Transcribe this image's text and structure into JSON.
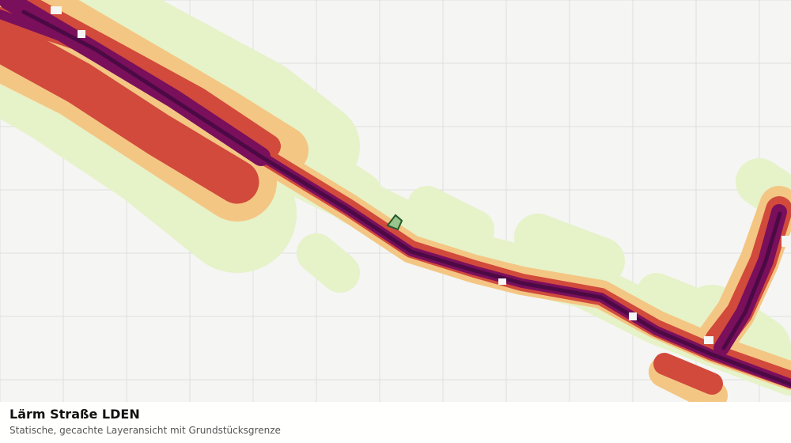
{
  "map": {
    "layer_title": "Lärm Straße LDEN",
    "layer_subtitle": "Statische, gecachte Layeransicht mit Grundstücksgrenze",
    "noise_class_colors": [
      "#e6f2c8",
      "#f4c683",
      "#d14a3c",
      "#7a0f5c",
      "#4c0a45"
    ],
    "background_color": "#f5f5f3",
    "grid_color": "#dedede",
    "parcel": {
      "fill": "#9ac48d",
      "stroke": "#235b2c"
    }
  }
}
